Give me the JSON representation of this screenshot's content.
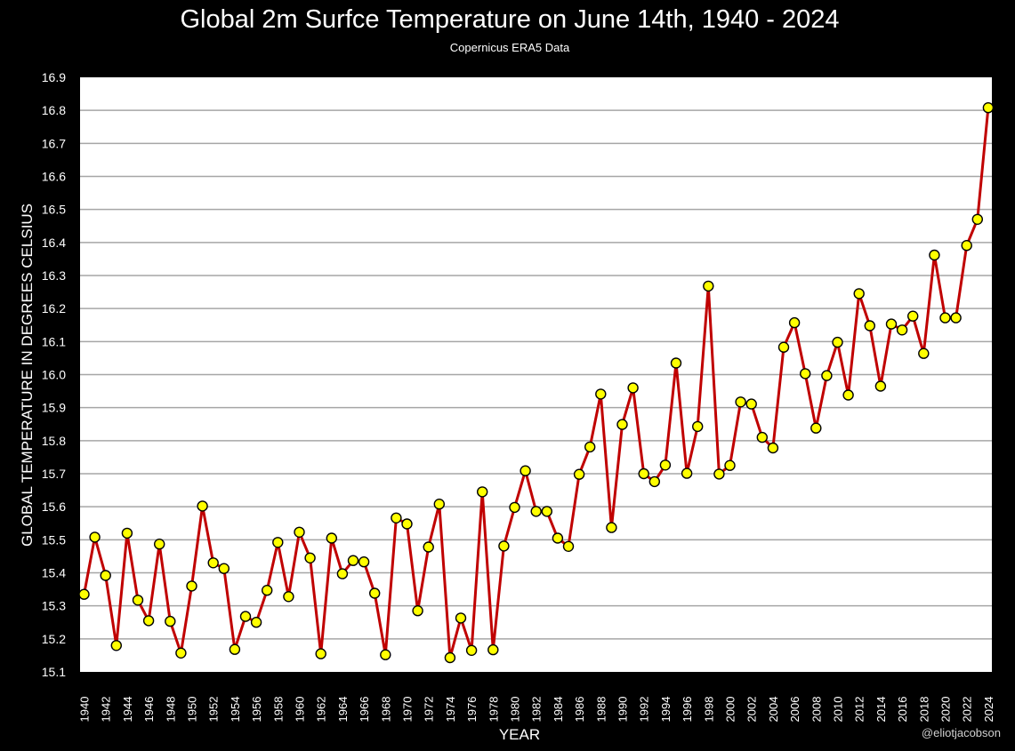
{
  "chart_data": {
    "type": "line",
    "title": "Global 2m Surfce Temperature on June 14th, 1940 - 2024",
    "subtitle": "Copernicus ERA5 Data",
    "xlabel": "YEAR",
    "ylabel": "GLOBAL TEMPERATURE IN DEGREES CELSIUS",
    "ylim": [
      15.1,
      16.9
    ],
    "y_ticks": [
      "15.1",
      "15.2",
      "15.3",
      "15.4",
      "15.5",
      "15.6",
      "15.7",
      "15.8",
      "15.9",
      "16.0",
      "16.1",
      "16.2",
      "16.3",
      "16.4",
      "16.5",
      "16.6",
      "16.7",
      "16.8",
      "16.9"
    ],
    "x_ticks": [
      1940,
      1942,
      1944,
      1946,
      1948,
      1950,
      1952,
      1954,
      1956,
      1958,
      1960,
      1962,
      1964,
      1966,
      1968,
      1970,
      1972,
      1974,
      1976,
      1978,
      1980,
      1982,
      1984,
      1986,
      1988,
      1990,
      1992,
      1994,
      1996,
      1998,
      2000,
      2002,
      2004,
      2006,
      2008,
      2010,
      2012,
      2014,
      2016,
      2018,
      2020,
      2022,
      2024
    ],
    "grid": true,
    "line_color": "#c00000",
    "marker_color": "#ffff00",
    "x": [
      1940,
      1941,
      1942,
      1943,
      1944,
      1945,
      1946,
      1947,
      1948,
      1949,
      1950,
      1951,
      1952,
      1953,
      1954,
      1955,
      1956,
      1957,
      1958,
      1959,
      1960,
      1961,
      1962,
      1963,
      1964,
      1965,
      1966,
      1967,
      1968,
      1969,
      1970,
      1971,
      1972,
      1973,
      1974,
      1975,
      1976,
      1977,
      1978,
      1979,
      1980,
      1981,
      1982,
      1983,
      1984,
      1985,
      1986,
      1987,
      1988,
      1989,
      1990,
      1991,
      1992,
      1993,
      1994,
      1995,
      1996,
      1997,
      1998,
      1999,
      2000,
      2001,
      2002,
      2003,
      2004,
      2005,
      2006,
      2007,
      2008,
      2009,
      2010,
      2011,
      2012,
      2013,
      2014,
      2015,
      2016,
      2017,
      2018,
      2019,
      2020,
      2021,
      2022,
      2023,
      2024
    ],
    "values": [
      15.335,
      15.508,
      15.392,
      15.18,
      15.52,
      15.317,
      15.255,
      15.487,
      15.253,
      15.157,
      15.36,
      15.602,
      15.43,
      15.413,
      15.168,
      15.268,
      15.25,
      15.347,
      15.492,
      15.328,
      15.523,
      15.445,
      15.155,
      15.505,
      15.397,
      15.437,
      15.433,
      15.338,
      15.152,
      15.566,
      15.548,
      15.285,
      15.478,
      15.608,
      15.143,
      15.263,
      15.165,
      15.645,
      15.167,
      15.481,
      15.598,
      15.709,
      15.586,
      15.586,
      15.505,
      15.48,
      15.698,
      15.781,
      15.941,
      15.537,
      15.849,
      15.96,
      15.7,
      15.676,
      15.726,
      16.035,
      15.701,
      15.843,
      16.268,
      15.699,
      15.725,
      15.917,
      15.911,
      15.81,
      15.778,
      16.083,
      16.157,
      16.003,
      15.838,
      15.997,
      16.098,
      15.938,
      16.245,
      16.148,
      15.965,
      16.153,
      16.135,
      16.177,
      16.064,
      16.362,
      16.172,
      16.172,
      16.391,
      16.47,
      16.808
    ]
  },
  "watermark": "@eliotjacobson"
}
